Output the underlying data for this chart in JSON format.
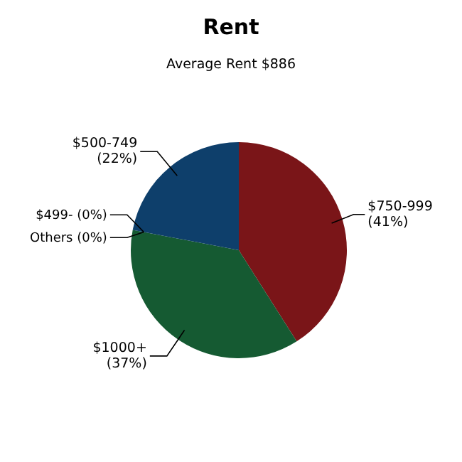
{
  "chart_data": {
    "type": "pie",
    "title": "Rent",
    "subtitle": "Average Rent  $886",
    "categories": [
      "$750-999",
      "$1000+",
      "Others",
      "$499-",
      "$500-749"
    ],
    "values": [
      41,
      37,
      0,
      0,
      22
    ],
    "colors": [
      "#7a1518",
      "#155a32",
      "#8a8a8a",
      "#c8a000",
      "#0e3f6b"
    ],
    "value_labels": [
      "(41%)",
      "(37%)",
      "(0%)",
      "(0%)",
      "(22%)"
    ]
  }
}
